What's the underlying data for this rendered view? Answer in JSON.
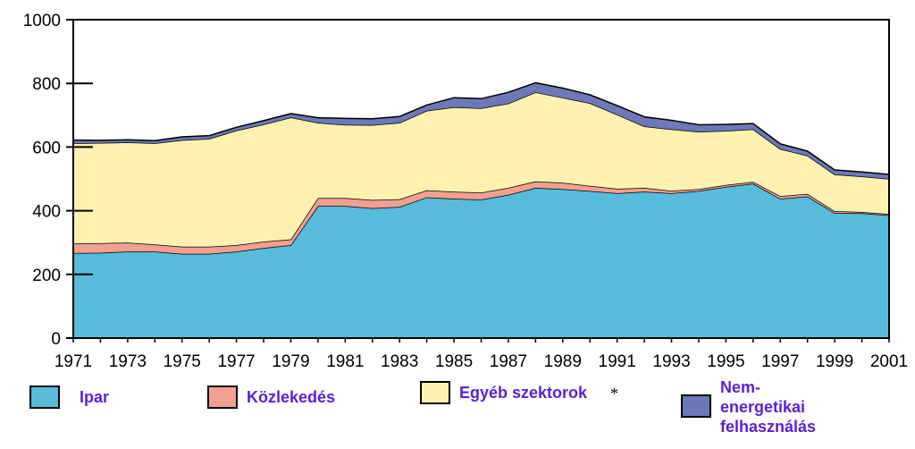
{
  "chart_data": {
    "type": "area",
    "stacked": true,
    "x": [
      1971,
      1972,
      1973,
      1974,
      1975,
      1976,
      1977,
      1978,
      1979,
      1980,
      1981,
      1982,
      1983,
      1984,
      1985,
      1986,
      1987,
      1988,
      1989,
      1990,
      1991,
      1992,
      1993,
      1994,
      1995,
      1996,
      1997,
      1998,
      1999,
      2000,
      2001
    ],
    "x_tick_labels": [
      "1971",
      "1973",
      "1975",
      "1977",
      "1979",
      "1981",
      "1983",
      "1985",
      "1987",
      "1989",
      "1991",
      "1993",
      "1995",
      "1997",
      "1999",
      "2001"
    ],
    "y_tick_labels": [
      "0",
      "200",
      "400",
      "600",
      "800",
      "1000"
    ],
    "ylim": [
      0,
      1000
    ],
    "series": [
      {
        "name": "Ipar",
        "color": "#57bcdb",
        "values": [
          267,
          268,
          272,
          272,
          265,
          265,
          272,
          283,
          292,
          415,
          415,
          408,
          412,
          442,
          438,
          435,
          450,
          472,
          468,
          462,
          455,
          460,
          455,
          462,
          475,
          485,
          438,
          445,
          393,
          392,
          386
        ]
      },
      {
        "name": "Közlekedés",
        "color": "#f2a090",
        "values": [
          30,
          30,
          28,
          22,
          22,
          22,
          20,
          20,
          18,
          25,
          25,
          26,
          24,
          22,
          22,
          22,
          22,
          20,
          20,
          16,
          14,
          12,
          8,
          6,
          6,
          6,
          8,
          8,
          6,
          4,
          4
        ]
      },
      {
        "name": "Egyéb szektorok",
        "color": "#fff2b0",
        "values": [
          315,
          315,
          315,
          318,
          335,
          339,
          360,
          368,
          383,
          236,
          230,
          235,
          240,
          250,
          265,
          265,
          265,
          280,
          267,
          260,
          233,
          193,
          193,
          180,
          170,
          165,
          148,
          120,
          115,
          112,
          110
        ]
      },
      {
        "name": "Nem-energetikai felhasználás",
        "color": "#6d78b8",
        "values": [
          10,
          8,
          8,
          8,
          10,
          10,
          10,
          12,
          12,
          16,
          20,
          20,
          20,
          18,
          30,
          30,
          35,
          30,
          30,
          26,
          28,
          30,
          28,
          22,
          20,
          18,
          16,
          14,
          14,
          14,
          14
        ]
      }
    ],
    "legend": [
      {
        "label": "Ipar",
        "color": "#57bcdb"
      },
      {
        "label": "Közlekedés",
        "color": "#f2a090"
      },
      {
        "label": "Egyéb szektorok",
        "color": "#fff2b0"
      },
      {
        "label": "Nem-energetikai felhasználás",
        "color": "#6d78b8"
      }
    ],
    "legend_placement": "bottom",
    "note_marker": "*"
  }
}
